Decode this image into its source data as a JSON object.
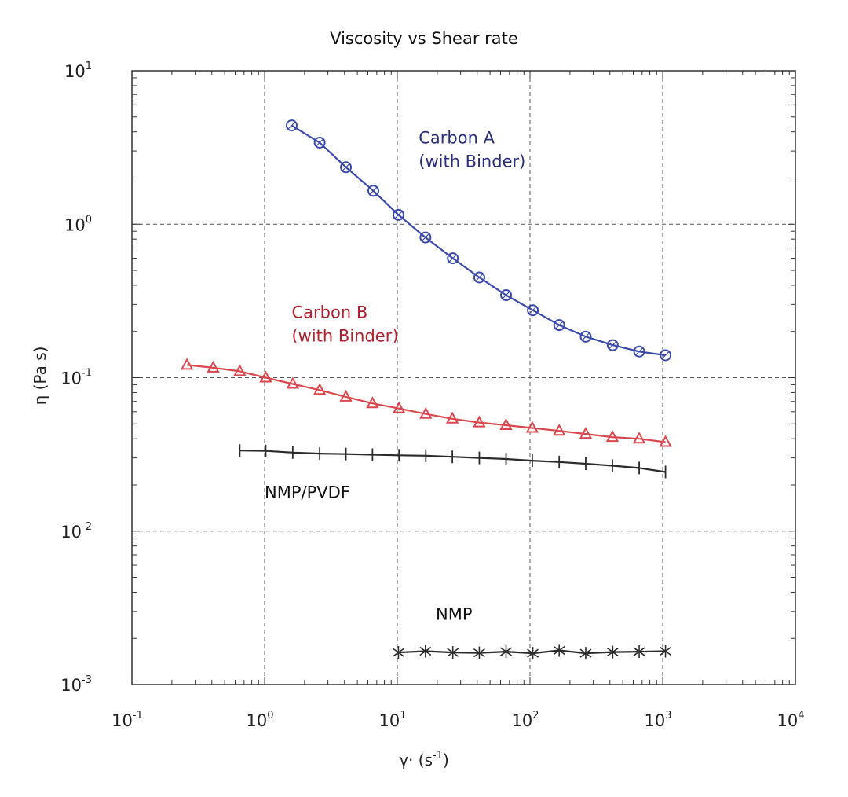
{
  "chart_data": {
    "type": "line",
    "title": "Viscosity vs Shear rate",
    "xlabel": {
      "base": "γ· (s",
      "sup": "-1",
      "close": ")"
    },
    "ylabel": "η (Pa s)",
    "xscale": "log",
    "yscale": "log",
    "xlim": [
      0.1,
      10000
    ],
    "ylim": [
      0.001,
      10
    ],
    "grid": true,
    "x_ticks": [
      {
        "base": "10",
        "exp": "-1",
        "value": 0.1
      },
      {
        "base": "10",
        "exp": "0",
        "value": 1
      },
      {
        "base": "10",
        "exp": "1",
        "value": 10
      },
      {
        "base": "10",
        "exp": "2",
        "value": 100
      },
      {
        "base": "10",
        "exp": "3",
        "value": 1000
      },
      {
        "base": "10",
        "exp": "4",
        "value": 10000
      }
    ],
    "y_ticks": [
      {
        "base": "10",
        "exp": "1",
        "value": 10
      },
      {
        "base": "10",
        "exp": "0",
        "value": 1
      },
      {
        "base": "10",
        "exp": "-1",
        "value": 0.1
      },
      {
        "base": "10",
        "exp": "-2",
        "value": 0.01
      },
      {
        "base": "10",
        "exp": "-3",
        "value": 0.001
      }
    ],
    "series": [
      {
        "name": "Carbon A\n(with Binder)",
        "label_lines": [
          "Carbon A",
          "(with Binder)"
        ],
        "label_at": [
          14.5,
          3.35
        ],
        "color": "#3b4aa8",
        "label_color": "#2a2f7a",
        "marker": "circle",
        "x": [
          1.6,
          2.6,
          4.1,
          6.6,
          10.2,
          16.3,
          26.2,
          41.5,
          66,
          105,
          166,
          263,
          420,
          665,
          1050
        ],
        "y": [
          4.4,
          3.4,
          2.35,
          1.65,
          1.15,
          0.82,
          0.6,
          0.45,
          0.345,
          0.275,
          0.22,
          0.185,
          0.163,
          0.148,
          0.14
        ]
      },
      {
        "name": "Carbon B\n(with Binder)",
        "label_lines": [
          "Carbon B",
          "(with Binder)"
        ],
        "label_at": [
          1.6,
          0.245
        ],
        "color": "#d9474f",
        "label_color": "#b0202e",
        "marker": "triangle",
        "x": [
          0.26,
          0.41,
          0.65,
          1.02,
          1.63,
          2.6,
          4.1,
          6.5,
          10.3,
          16.4,
          26,
          41.5,
          66,
          104,
          166,
          263,
          418,
          665,
          1050
        ],
        "y": [
          0.121,
          0.116,
          0.11,
          0.1,
          0.091,
          0.083,
          0.075,
          0.068,
          0.063,
          0.058,
          0.054,
          0.051,
          0.049,
          0.047,
          0.045,
          0.043,
          0.041,
          0.04,
          0.038
        ]
      },
      {
        "name": "NMP/PVDF",
        "label_lines": [
          "NMP/PVDF"
        ],
        "label_at": [
          1.0,
          0.0165
        ],
        "color": "#2b2b2b",
        "label_color": "#111111",
        "marker": "plus",
        "x": [
          0.65,
          1.02,
          1.63,
          2.6,
          4.1,
          6.5,
          10.3,
          16.4,
          26,
          41.5,
          66,
          104,
          166,
          263,
          418,
          665,
          1050
        ],
        "y": [
          0.0335,
          0.0333,
          0.0325,
          0.032,
          0.0318,
          0.0315,
          0.0312,
          0.031,
          0.0305,
          0.03,
          0.0295,
          0.0288,
          0.0282,
          0.0275,
          0.0267,
          0.0258,
          0.0243
        ]
      },
      {
        "name": "NMP",
        "label_lines": [
          "NMP"
        ],
        "label_at": [
          19.5,
          0.00265
        ],
        "color": "#2b2b2b",
        "label_color": "#111111",
        "marker": "asterisk",
        "x": [
          10.2,
          16.3,
          26.2,
          41.5,
          66,
          105,
          166,
          263,
          420,
          665,
          1050
        ],
        "y": [
          0.00162,
          0.00165,
          0.00162,
          0.00161,
          0.00164,
          0.0016,
          0.00167,
          0.0016,
          0.00163,
          0.00164,
          0.00165
        ]
      }
    ]
  }
}
